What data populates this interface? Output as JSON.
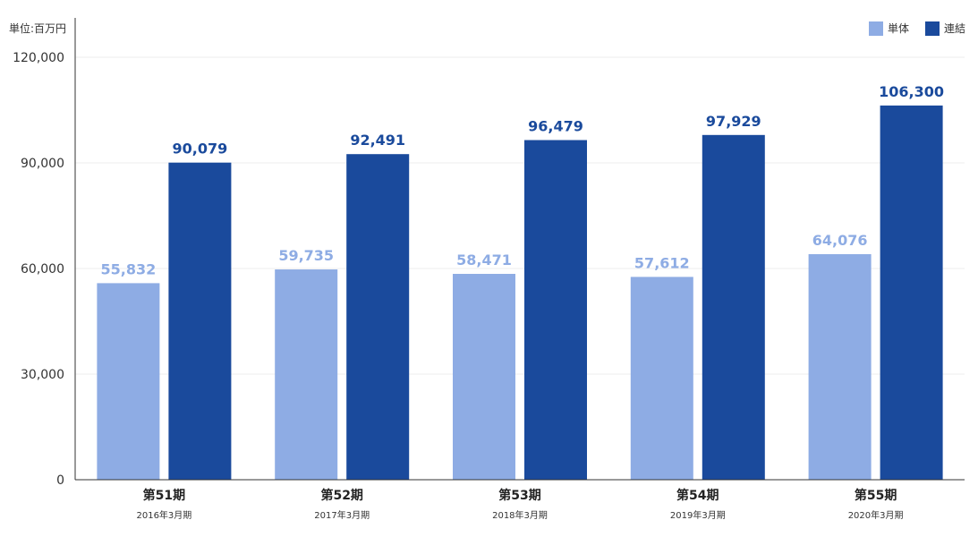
{
  "chart_data": {
    "type": "bar",
    "unit_label": "単位:百万円",
    "categories": [
      "第51期",
      "第52期",
      "第53期",
      "第54期",
      "第55期"
    ],
    "sub_labels": [
      "2016年3月期",
      "2017年3月期",
      "2018年3月期",
      "2019年3月期",
      "2020年3月期"
    ],
    "series": [
      {
        "name": "単体",
        "values": [
          55832,
          59735,
          58471,
          57612,
          64076
        ],
        "color": "#8eace4"
      },
      {
        "name": "連結",
        "values": [
          90079,
          92491,
          96479,
          97929,
          106300
        ],
        "color": "#1a4a9c"
      }
    ],
    "ylim": [
      0,
      120000
    ],
    "yticks": [
      0,
      30000,
      60000,
      90000,
      120000
    ],
    "ytick_labels": [
      "0",
      "30,000",
      "60,000",
      "90,000",
      "120,000"
    ],
    "data_labels": [
      [
        "55,832",
        "59,735",
        "58,471",
        "57,612",
        "64,076"
      ],
      [
        "90,079",
        "92,491",
        "96,479",
        "97,929",
        "106,300"
      ]
    ],
    "grid": true,
    "legend_position": "top-right"
  }
}
